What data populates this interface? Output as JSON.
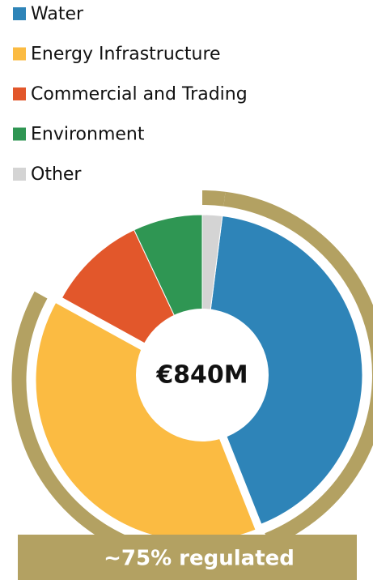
{
  "chart_data": {
    "type": "donut",
    "categories": [
      "Water",
      "Energy Infrastructure",
      "Commercial and Trading",
      "Environment",
      "Other"
    ],
    "values": [
      42,
      39,
      10,
      7,
      2
    ],
    "colors": [
      "#2e84b8",
      "#fbbb42",
      "#e2572b",
      "#2f9653",
      "#d4d4d4"
    ],
    "center_label": "€840M",
    "annotation": "~75% regulated"
  }
}
